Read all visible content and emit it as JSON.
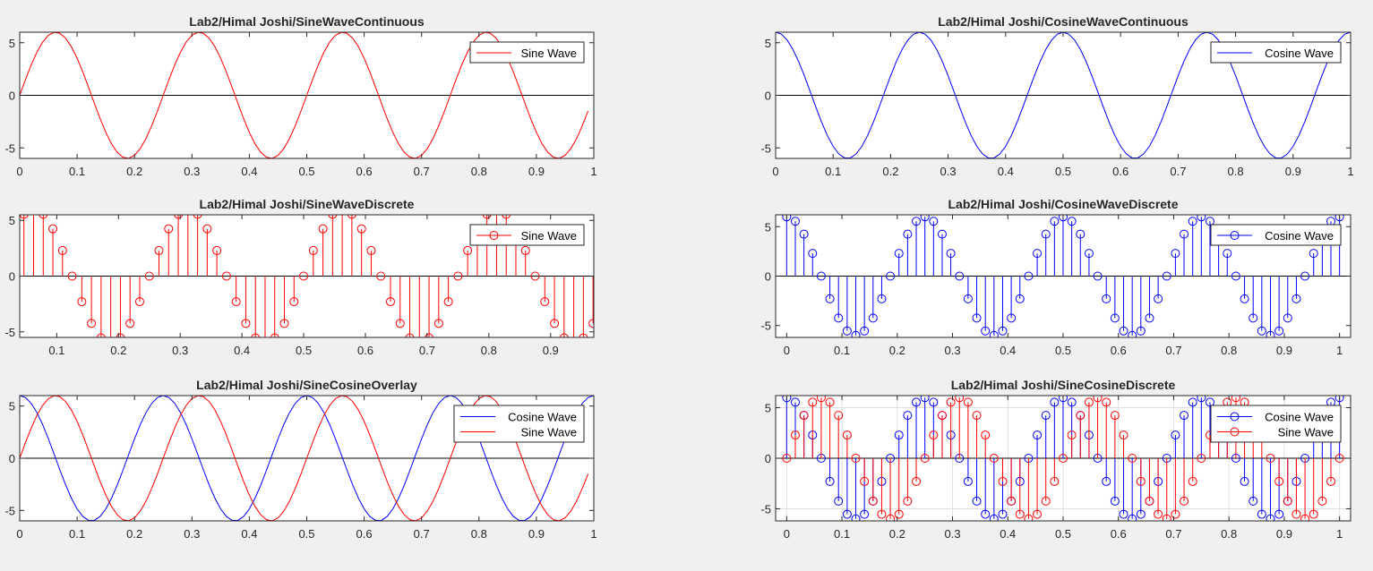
{
  "figure": {
    "background": "#f0f0f0",
    "axes_background": "#ffffff",
    "sine_color": "#ff0000",
    "cosine_color": "#0000ff",
    "zero_line_color": "#000000"
  },
  "chart_data": [
    {
      "id": "sine_continuous",
      "type": "line",
      "title": "Lab2/Himal Joshi/SineWaveContinuous",
      "xlim": [
        0,
        1
      ],
      "ylim": [
        -6,
        6
      ],
      "xticks": [
        "0",
        "0.1",
        "0.2",
        "0.3",
        "0.4",
        "0.5",
        "0.6",
        "0.7",
        "0.8",
        "0.9",
        "1"
      ],
      "yticks": [
        "-5",
        "0",
        "5"
      ],
      "legend": {
        "position": "top-right",
        "entries": [
          "Sine Wave"
        ]
      },
      "series": [
        {
          "name": "Sine Wave",
          "function": "sine",
          "amplitude": 6,
          "frequency": 4,
          "color": "#ff0000",
          "style": "line",
          "x_start": 0,
          "x_end": 0.99,
          "x_step": 0.01
        }
      ],
      "grid": false
    },
    {
      "id": "sine_discrete",
      "type": "stem",
      "title": "Lab2/Himal Joshi/SineWaveDiscrete",
      "xlim": [
        0.04,
        0.97
      ],
      "ylim": [
        -5.5,
        5.5
      ],
      "xticks": [
        "0.1",
        "0.2",
        "0.3",
        "0.4",
        "0.5",
        "0.6",
        "0.7",
        "0.8",
        "0.9"
      ],
      "yticks": [
        "-5",
        "0",
        "5"
      ],
      "legend": {
        "position": "top-right",
        "entries": [
          "Sine Wave"
        ]
      },
      "series": [
        {
          "name": "Sine Wave",
          "function": "sine",
          "amplitude": 6,
          "frequency": 4,
          "color": "#ff0000",
          "style": "stem",
          "x_start": 0,
          "x_end": 1,
          "x_step": 0.015625
        }
      ],
      "grid": false
    },
    {
      "id": "sine_cosine_overlay",
      "type": "line",
      "title": "Lab2/Himal Joshi/SineCosineOverlay",
      "xlim": [
        0,
        1
      ],
      "ylim": [
        -6,
        6
      ],
      "xticks": [
        "0",
        "0.1",
        "0.2",
        "0.3",
        "0.4",
        "0.5",
        "0.6",
        "0.7",
        "0.8",
        "0.9",
        "1"
      ],
      "yticks": [
        "-5",
        "0",
        "5"
      ],
      "legend": {
        "position": "top-right",
        "entries": [
          "Cosine Wave",
          "Sine Wave"
        ]
      },
      "series": [
        {
          "name": "Cosine Wave",
          "function": "cosine",
          "amplitude": 6,
          "frequency": 4,
          "color": "#0000ff",
          "style": "line",
          "x_start": 0,
          "x_end": 1,
          "x_step": 0.01
        },
        {
          "name": "Sine Wave",
          "function": "sine",
          "amplitude": 6,
          "frequency": 4,
          "color": "#ff0000",
          "style": "line",
          "x_start": 0,
          "x_end": 0.99,
          "x_step": 0.01
        }
      ],
      "grid": false
    },
    {
      "id": "cosine_continuous",
      "type": "line",
      "title": "Lab2/Himal Joshi/CosineWaveContinuous",
      "xlim": [
        0,
        1
      ],
      "ylim": [
        -6,
        6
      ],
      "xticks": [
        "0",
        "0.1",
        "0.2",
        "0.3",
        "0.4",
        "0.5",
        "0.6",
        "0.7",
        "0.8",
        "0.9",
        "1"
      ],
      "yticks": [
        "-5",
        "0",
        "5"
      ],
      "legend": {
        "position": "top-right",
        "entries": [
          "Cosine Wave"
        ]
      },
      "series": [
        {
          "name": "Cosine Wave",
          "function": "cosine",
          "amplitude": 6,
          "frequency": 4,
          "color": "#0000ff",
          "style": "line",
          "x_start": 0,
          "x_end": 1,
          "x_step": 0.01
        }
      ],
      "grid": false
    },
    {
      "id": "cosine_discrete",
      "type": "stem",
      "title": "Lab2/Himal Joshi/CosineWaveDiscrete",
      "xlim": [
        -0.02,
        1.02
      ],
      "ylim": [
        -6.2,
        6.2
      ],
      "xticks": [
        "0",
        "0.1",
        "0.2",
        "0.3",
        "0.4",
        "0.5",
        "0.6",
        "0.7",
        "0.8",
        "0.9",
        "1"
      ],
      "yticks": [
        "-5",
        "0",
        "5"
      ],
      "legend": {
        "position": "top-right",
        "entries": [
          "Cosine Wave"
        ]
      },
      "series": [
        {
          "name": "Cosine Wave",
          "function": "cosine",
          "amplitude": 6,
          "frequency": 4,
          "color": "#0000ff",
          "style": "stem",
          "x_start": 0,
          "x_end": 1,
          "x_step": 0.015625
        }
      ],
      "grid": false
    },
    {
      "id": "sine_cosine_discrete",
      "type": "stem",
      "title": "Lab2/Himal Joshi/SineCosineDiscrete",
      "xlim": [
        -0.02,
        1.02
      ],
      "ylim": [
        -6.2,
        6.2
      ],
      "xticks": [
        "0",
        "0.1",
        "0.2",
        "0.3",
        "0.4",
        "0.5",
        "0.6",
        "0.7",
        "0.8",
        "0.9",
        "1"
      ],
      "yticks": [
        "-5",
        "0",
        "5"
      ],
      "legend": {
        "position": "top-right",
        "entries": [
          "Cosine Wave",
          "Sine Wave"
        ]
      },
      "series": [
        {
          "name": "Cosine Wave",
          "function": "cosine",
          "amplitude": 6,
          "frequency": 4,
          "color": "#0000ff",
          "style": "stem",
          "x_start": 0,
          "x_end": 1,
          "x_step": 0.015625
        },
        {
          "name": "Sine Wave",
          "function": "sine",
          "amplitude": 6,
          "frequency": 4,
          "color": "#ff0000",
          "style": "stem",
          "x_start": 0,
          "x_end": 1,
          "x_step": 0.015625
        }
      ],
      "grid": true
    }
  ]
}
